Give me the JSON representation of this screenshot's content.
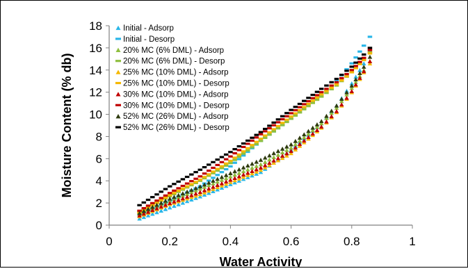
{
  "chart_data": {
    "type": "scatter",
    "title": "",
    "xlabel": "Water Activity",
    "ylabel": "Moisture Content (% db)",
    "xlim": [
      0,
      1
    ],
    "ylim": [
      0,
      18
    ],
    "x_ticks": [
      "0",
      "0.2",
      "0.4",
      "0.6",
      "0.8",
      "1"
    ],
    "y_ticks": [
      "0",
      "2",
      "4",
      "6",
      "8",
      "10",
      "12",
      "14",
      "16",
      "18"
    ],
    "grid": false,
    "legend_position": "top-left",
    "series": [
      {
        "name": "Initial - Adsorp",
        "marker": "triangle",
        "color": "#29b6e8",
        "x": [
          0.1,
          0.2,
          0.3,
          0.4,
          0.5,
          0.6,
          0.7,
          0.75,
          0.8,
          0.84,
          0.86
        ],
        "y": [
          0.6,
          1.6,
          2.6,
          3.7,
          4.8,
          6.8,
          9.2,
          10.8,
          12.8,
          14.6,
          15.6
        ]
      },
      {
        "name": "Initial - Desorp",
        "marker": "dash",
        "color": "#29b6e8",
        "x": [
          0.1,
          0.2,
          0.3,
          0.4,
          0.5,
          0.6,
          0.7,
          0.75,
          0.8,
          0.84,
          0.86
        ],
        "y": [
          1.0,
          2.2,
          3.5,
          5.3,
          7.6,
          9.6,
          11.8,
          13.0,
          14.6,
          16.2,
          17.0
        ]
      },
      {
        "name": "20% MC (6% DML) - Adsorp",
        "marker": "triangle",
        "color": "#8fbf3f",
        "x": [
          0.1,
          0.2,
          0.3,
          0.4,
          0.5,
          0.6,
          0.7,
          0.75,
          0.8,
          0.84,
          0.86
        ],
        "y": [
          1.0,
          2.2,
          3.3,
          4.4,
          5.5,
          7.0,
          9.2,
          10.6,
          12.4,
          14.0,
          14.8
        ]
      },
      {
        "name": "20% MC (6% DML) - Desorp",
        "marker": "dash",
        "color": "#8fbf3f",
        "x": [
          0.1,
          0.2,
          0.3,
          0.4,
          0.5,
          0.6,
          0.7,
          0.75,
          0.8,
          0.84,
          0.86
        ],
        "y": [
          1.2,
          2.6,
          4.0,
          5.6,
          7.6,
          9.6,
          11.6,
          12.6,
          13.8,
          15.0,
          15.6
        ]
      },
      {
        "name": "25% MC (10% DML) - Adsorp",
        "marker": "triangle",
        "color": "#f5b800",
        "x": [
          0.1,
          0.2,
          0.3,
          0.4,
          0.5,
          0.6,
          0.7,
          0.75,
          0.8,
          0.84,
          0.86
        ],
        "y": [
          0.8,
          1.9,
          2.8,
          3.9,
          5.0,
          6.5,
          8.8,
          10.2,
          12.0,
          13.8,
          14.6
        ]
      },
      {
        "name": "25% MC (10% DML) - Desorp",
        "marker": "dash",
        "color": "#f5b800",
        "x": [
          0.1,
          0.2,
          0.3,
          0.4,
          0.5,
          0.6,
          0.7,
          0.75,
          0.8,
          0.84,
          0.86
        ],
        "y": [
          1.1,
          2.7,
          4.1,
          5.8,
          7.8,
          9.8,
          11.8,
          12.7,
          13.8,
          14.9,
          15.5
        ]
      },
      {
        "name": "30% MC (10% DML) - Adsorp",
        "marker": "triangle",
        "color": "#c00000",
        "x": [
          0.1,
          0.2,
          0.3,
          0.4,
          0.5,
          0.6,
          0.7,
          0.75,
          0.8,
          0.84,
          0.86
        ],
        "y": [
          0.9,
          2.0,
          3.0,
          4.1,
          5.2,
          6.7,
          8.9,
          10.3,
          12.1,
          13.9,
          14.8
        ]
      },
      {
        "name": "30% MC (10% DML) - Desorp",
        "marker": "dash",
        "color": "#c00000",
        "x": [
          0.1,
          0.2,
          0.3,
          0.4,
          0.5,
          0.6,
          0.7,
          0.75,
          0.8,
          0.84,
          0.86
        ],
        "y": [
          1.3,
          2.9,
          4.4,
          6.2,
          8.2,
          10.1,
          12.0,
          12.9,
          14.0,
          15.1,
          15.8
        ]
      },
      {
        "name": "52% MC (26% DML) - Adsorp",
        "marker": "triangle",
        "color": "#2f3b0f",
        "x": [
          0.1,
          0.2,
          0.3,
          0.4,
          0.5,
          0.6,
          0.7,
          0.75,
          0.8,
          0.84,
          0.86
        ],
        "y": [
          1.1,
          2.4,
          3.5,
          4.7,
          5.9,
          7.3,
          9.4,
          10.8,
          12.6,
          14.3,
          15.2
        ]
      },
      {
        "name": "52% MC (26% DML) - Desorp",
        "marker": "dash",
        "color": "#000000",
        "x": [
          0.1,
          0.2,
          0.3,
          0.4,
          0.5,
          0.6,
          0.7,
          0.75,
          0.8,
          0.84,
          0.86
        ],
        "y": [
          1.8,
          3.5,
          5.0,
          6.6,
          8.4,
          10.4,
          12.3,
          13.2,
          14.3,
          15.4,
          16.0
        ]
      }
    ]
  }
}
